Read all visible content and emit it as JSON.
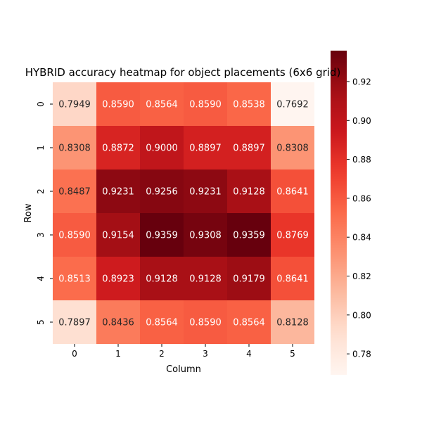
{
  "chart_data": {
    "type": "heatmap",
    "title": "HYBRID accuracy heatmap for object placements (6x6 grid)",
    "xlabel": "Column",
    "ylabel": "Row",
    "x_categories": [
      "0",
      "1",
      "2",
      "3",
      "4",
      "5"
    ],
    "y_categories": [
      "0",
      "1",
      "2",
      "3",
      "4",
      "5"
    ],
    "values": [
      [
        0.7949,
        0.859,
        0.8564,
        0.859,
        0.8538,
        0.7692
      ],
      [
        0.8308,
        0.8872,
        0.9,
        0.8897,
        0.8897,
        0.8308
      ],
      [
        0.8487,
        0.9231,
        0.9256,
        0.9231,
        0.9128,
        0.8641
      ],
      [
        0.859,
        0.9154,
        0.9359,
        0.9308,
        0.9359,
        0.8769
      ],
      [
        0.8513,
        0.8923,
        0.9128,
        0.9128,
        0.9179,
        0.8641
      ],
      [
        0.7897,
        0.8436,
        0.8564,
        0.859,
        0.8564,
        0.8128
      ]
    ],
    "value_format": "4 decimals",
    "colormap": "Reds",
    "vmin": 0.7692,
    "vmax": 0.9359,
    "colorbar_ticks": [
      0.78,
      0.8,
      0.82,
      0.84,
      0.86,
      0.88,
      0.9,
      0.92
    ],
    "colorbar_tick_labels": [
      "0.78",
      "0.80",
      "0.82",
      "0.84",
      "0.86",
      "0.88",
      "0.90",
      "0.92"
    ],
    "colorbar_position": "right",
    "grid": false
  }
}
